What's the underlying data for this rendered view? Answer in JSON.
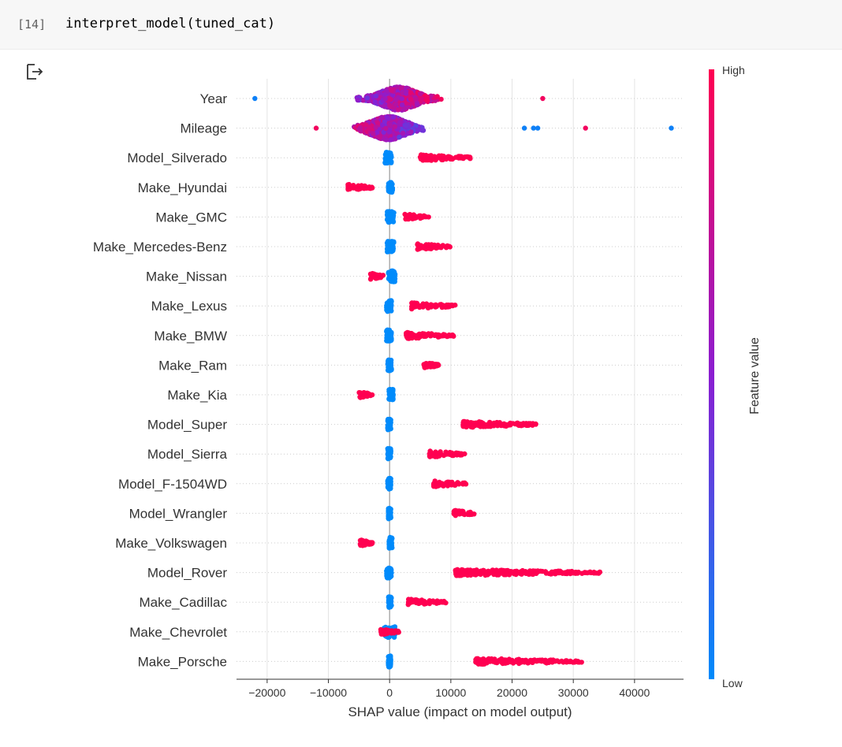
{
  "cell": {
    "execution_count": "[14]",
    "code": "interpret_model(tuned_cat)",
    "output_icon": "output-redirect-icon"
  },
  "chart_data": {
    "type": "scatter",
    "subtype": "shap-beeswarm-summary",
    "title": "",
    "xlabel": "SHAP value (impact on model output)",
    "xlim": [
      -25000,
      48000
    ],
    "xticks": [
      -20000,
      -10000,
      0,
      10000,
      20000,
      30000,
      40000
    ],
    "xtick_labels": [
      "−20000",
      "−10000",
      "0",
      "10000",
      "20000",
      "30000",
      "40000"
    ],
    "grid": "vertical",
    "colorbar": {
      "label": "Feature value",
      "high_label": "High",
      "low_label": "Low",
      "high_color": "#ff0051",
      "low_color": "#008bfb",
      "placement": "right"
    },
    "features": [
      {
        "name": "Year",
        "low_range": [
          -22000,
          1500
        ],
        "high_range": [
          -1000,
          13000
        ],
        "low_side": "left",
        "high_outliers": [
          25000
        ],
        "low_outliers": [
          -22000
        ]
      },
      {
        "name": "Mileage",
        "low_range": [
          -1000,
          16000
        ],
        "high_range": [
          -12000,
          1000
        ],
        "low_side": "right",
        "low_outliers": [
          22000,
          23500,
          24200,
          46000
        ],
        "high_outliers": [
          32000,
          -12000
        ]
      },
      {
        "name": "Model_Silverado",
        "low_range": [
          -800,
          300
        ],
        "high_range": [
          5000,
          13500
        ]
      },
      {
        "name": "Make_Hyundai",
        "low_range": [
          -200,
          500
        ],
        "high_range": [
          -6800,
          -2600
        ]
      },
      {
        "name": "Make_GMC",
        "low_range": [
          -400,
          700
        ],
        "high_range": [
          2500,
          6500
        ]
      },
      {
        "name": "Make_Mercedes-Benz",
        "low_range": [
          -400,
          700
        ],
        "high_range": [
          4500,
          9900
        ]
      },
      {
        "name": "Make_Nissan",
        "low_range": [
          -200,
          900
        ],
        "high_range": [
          -3200,
          -700
        ]
      },
      {
        "name": "Make_Lexus",
        "low_range": [
          -500,
          300
        ],
        "high_range": [
          3600,
          10800
        ]
      },
      {
        "name": "Make_BMW",
        "low_range": [
          -500,
          300
        ],
        "high_range": [
          2700,
          10500
        ]
      },
      {
        "name": "Make_Ram",
        "low_range": [
          -300,
          300
        ],
        "high_range": [
          5600,
          8000
        ]
      },
      {
        "name": "Make_Kia",
        "low_range": [
          -100,
          600
        ],
        "high_range": [
          -5000,
          -2800
        ]
      },
      {
        "name": "Model_Super",
        "low_range": [
          -300,
          200
        ],
        "high_range": [
          12000,
          24000
        ]
      },
      {
        "name": "Model_Sierra",
        "low_range": [
          -300,
          200
        ],
        "high_range": [
          6500,
          12300
        ]
      },
      {
        "name": "Model_F-1504WD",
        "low_range": [
          -300,
          200
        ],
        "high_range": [
          7200,
          12700
        ]
      },
      {
        "name": "Model_Wrangler",
        "low_range": [
          -200,
          200
        ],
        "high_range": [
          10500,
          13800
        ]
      },
      {
        "name": "Make_Volkswagen",
        "low_range": [
          -100,
          400
        ],
        "high_range": [
          -4800,
          -2800
        ]
      },
      {
        "name": "Model_Rover",
        "low_range": [
          -500,
          300
        ],
        "high_range": [
          10700,
          34800
        ]
      },
      {
        "name": "Make_Cadillac",
        "low_range": [
          -200,
          300
        ],
        "high_range": [
          3000,
          9200
        ]
      },
      {
        "name": "Make_Chevrolet",
        "low_range": [
          -900,
          900
        ],
        "high_range": [
          -1500,
          1500
        ]
      },
      {
        "name": "Make_Porsche",
        "low_range": [
          -200,
          200
        ],
        "high_range": [
          14000,
          31500
        ]
      }
    ]
  }
}
